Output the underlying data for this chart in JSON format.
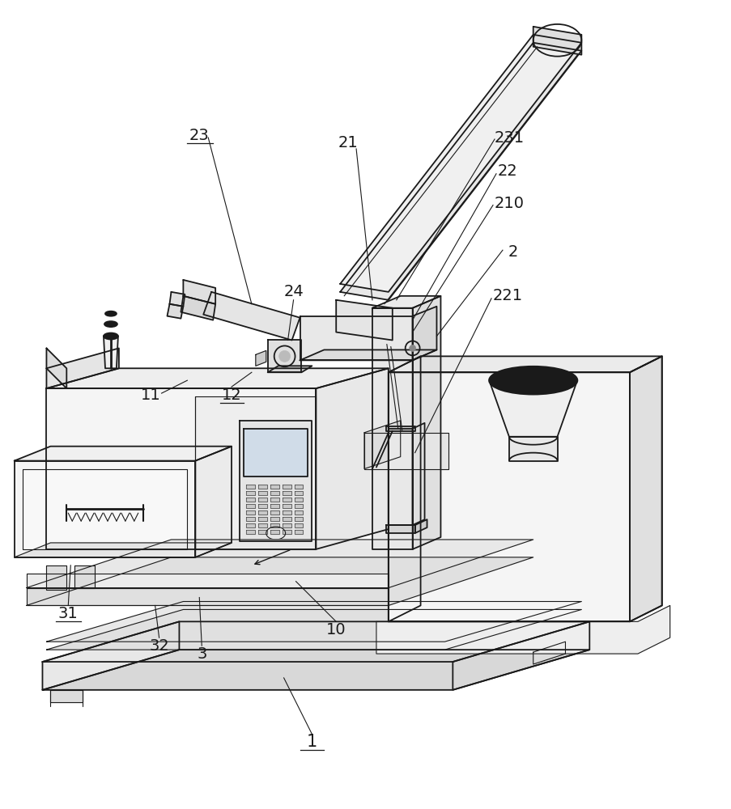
{
  "bg": "#ffffff",
  "lc": "#1a1a1a",
  "lw": 1.3,
  "tlw": 0.8,
  "fw": 9.04,
  "fh": 10.0,
  "dpi": 100
}
